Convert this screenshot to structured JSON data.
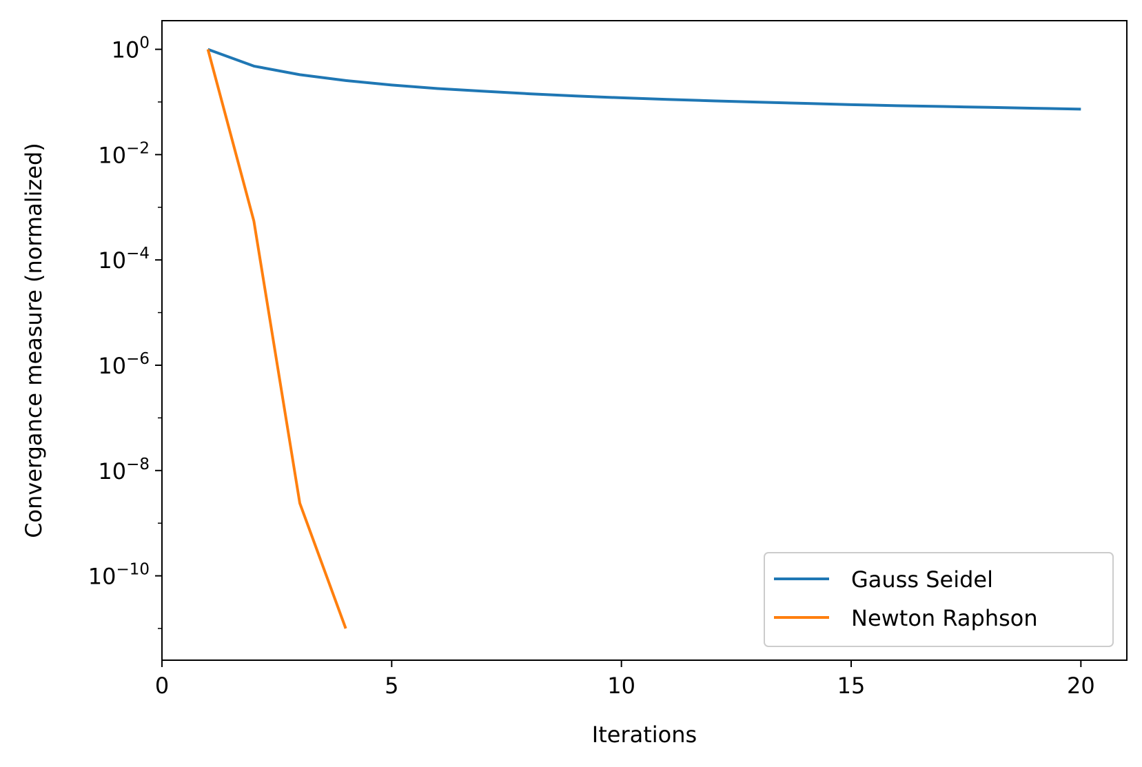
{
  "chart_data": {
    "type": "line",
    "title": "",
    "xlabel": "Iterations",
    "ylabel": "Convergance measure (normalized)",
    "xscale": "linear",
    "yscale": "log",
    "xlim": [
      0,
      21
    ],
    "ylim": [
      2.5e-12,
      3.5
    ],
    "grid": false,
    "legend_position": "lower-right",
    "x_ticks": [
      0,
      5,
      10,
      15,
      20
    ],
    "x_tick_labels": [
      "0",
      "5",
      "10",
      "15",
      "20"
    ],
    "y_ticks": [
      1,
      0.01,
      0.0001,
      1e-06,
      1e-08,
      1e-10
    ],
    "y_tick_labels": [
      {
        "base": "10",
        "exp": "0"
      },
      {
        "base": "10",
        "exp": "−2"
      },
      {
        "base": "10",
        "exp": "−4"
      },
      {
        "base": "10",
        "exp": "−6"
      },
      {
        "base": "10",
        "exp": "−8"
      },
      {
        "base": "10",
        "exp": "−10"
      }
    ],
    "series": [
      {
        "name": "Gauss Seidel",
        "color": "#1f77b4",
        "x": [
          1,
          2,
          3,
          4,
          5,
          6,
          7,
          8,
          9,
          10,
          11,
          12,
          13,
          14,
          15,
          16,
          17,
          18,
          19,
          20
        ],
        "y": [
          1.0,
          0.48,
          0.33,
          0.255,
          0.21,
          0.18,
          0.16,
          0.143,
          0.13,
          0.12,
          0.112,
          0.105,
          0.099,
          0.094,
          0.089,
          0.085,
          0.082,
          0.079,
          0.076,
          0.073
        ]
      },
      {
        "name": "Newton Raphson",
        "color": "#ff7f0e",
        "x": [
          1,
          2,
          3,
          4
        ],
        "y": [
          1.0,
          0.00055,
          2.4e-09,
          1e-11
        ]
      }
    ]
  }
}
